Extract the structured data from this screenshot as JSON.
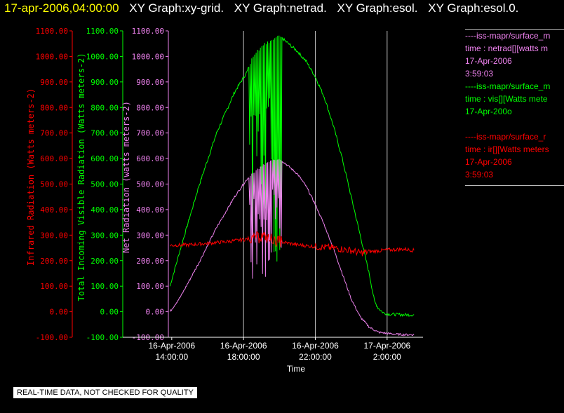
{
  "header": {
    "timestamp": "17-apr-2006,04:00:00",
    "graphs": [
      "XY Graph:xy-grid.",
      "XY Graph:netrad.",
      "XY Graph:esol.",
      "XY Graph:esol.0."
    ]
  },
  "notice": "REAL-TIME DATA, NOT CHECKED FOR QUALITY",
  "legend": [
    {
      "lines": [
        "----iss-mapr/surface_m",
        "time : netrad[][watts m",
        "17-Apr-2006",
        "3:59:03"
      ],
      "color": "#ee82ee"
    },
    {
      "lines": [
        "----iss-mapr/surface_m",
        "time : vis[][Watts mete",
        "17-Apr-200o"
      ],
      "color": "#00ff00"
    },
    {
      "lines": [
        "----iss-mapr/surface_r",
        "time : ir[][Watts meters",
        "17-Apr-2006",
        "3:59:03"
      ],
      "color": "#ff0000"
    }
  ],
  "chart_data": {
    "type": "line",
    "xlabel": "Time",
    "x_ticks": [
      {
        "date": "16-Apr-2006",
        "time": "14:00:00",
        "hour": 14
      },
      {
        "date": "16-Apr-2006",
        "time": "18:00:00",
        "hour": 18
      },
      {
        "date": "16-Apr-2006",
        "time": "22:00:00",
        "hour": 22
      },
      {
        "date": "17-Apr-2006",
        "time": "2:00:00",
        "hour": 26
      }
    ],
    "xlim_hours": [
      13.85,
      28.0
    ],
    "axes": [
      {
        "name": "ir",
        "label": "Infrared Radiation (Watts meters-2)",
        "color": "#ff0000",
        "ticks": [
          "1100.00",
          "1000.00",
          "900.00",
          "800.00",
          "700.00",
          "600.00",
          "500.00",
          "400.00",
          "300.00",
          "200.00",
          "100.00",
          "0.00",
          "-100.00"
        ]
      },
      {
        "name": "vis",
        "label": "Total Incoming Visible Radiation (Watts meters-2)",
        "color": "#00ff00",
        "ticks": [
          "1100.00",
          "1000.00",
          "900.00",
          "800.00",
          "700.00",
          "600.00",
          "500.00",
          "400.00",
          "300.00",
          "200.00",
          "100.00",
          "0.00",
          "-100.00"
        ]
      },
      {
        "name": "netrad",
        "label": "Net Radiation (watts meters-2)",
        "color": "#ee82ee",
        "ticks": [
          "1100.00",
          "1000.00",
          "900.00",
          "800.00",
          "700.00",
          "600.00",
          "500.00",
          "400.00",
          "300.00",
          "200.00",
          "100.00",
          "0.00",
          "-100.00"
        ]
      }
    ],
    "ylim": [
      -100,
      1100
    ],
    "series": [
      {
        "key": "vis",
        "color": "#00ff00",
        "x": [
          13.9,
          14.5,
          15.5,
          16.5,
          17.5,
          18.2,
          18.5,
          19.0,
          19.5,
          20.0,
          20.5,
          21.0,
          21.5,
          22.0,
          22.5,
          23.0,
          23.5,
          24.0,
          24.5,
          25.0,
          25.3,
          25.5,
          25.8,
          26.2,
          27.0,
          27.5
        ],
        "y": [
          100,
          250,
          490,
          700,
          860,
          940,
          1000,
          1040,
          1060,
          1080,
          1050,
          1020,
          980,
          920,
          840,
          730,
          600,
          450,
          300,
          150,
          40,
          15,
          -5,
          -10,
          -12,
          -12
        ]
      },
      {
        "key": "netrad",
        "color": "#ee82ee",
        "x": [
          13.9,
          14.5,
          15.5,
          16.5,
          17.5,
          18.2,
          18.5,
          19.0,
          19.5,
          20.0,
          20.5,
          21.0,
          21.5,
          22.0,
          22.5,
          23.0,
          23.5,
          24.0,
          24.5,
          25.0,
          25.5,
          26.0,
          26.5,
          27.0,
          27.5
        ],
        "y": [
          0,
          60,
          190,
          330,
          450,
          520,
          540,
          570,
          590,
          600,
          570,
          540,
          490,
          420,
          340,
          250,
          150,
          50,
          -20,
          -60,
          -80,
          -85,
          -88,
          -90,
          -90
        ]
      },
      {
        "key": "ir",
        "color": "#ff0000",
        "x": [
          13.9,
          15.0,
          16.0,
          17.0,
          18.0,
          18.5,
          19.0,
          19.5,
          20.0,
          21.0,
          22.0,
          23.0,
          24.0,
          24.5,
          25.0,
          26.0,
          27.0,
          27.5
        ],
        "y": [
          260,
          262,
          268,
          274,
          282,
          290,
          295,
          285,
          275,
          262,
          255,
          250,
          240,
          230,
          235,
          242,
          245,
          240
        ]
      }
    ],
    "burst_window_hours": [
      18.3,
      20.1
    ],
    "vertical_gridlines_hours": [
      18,
      22,
      26
    ]
  }
}
